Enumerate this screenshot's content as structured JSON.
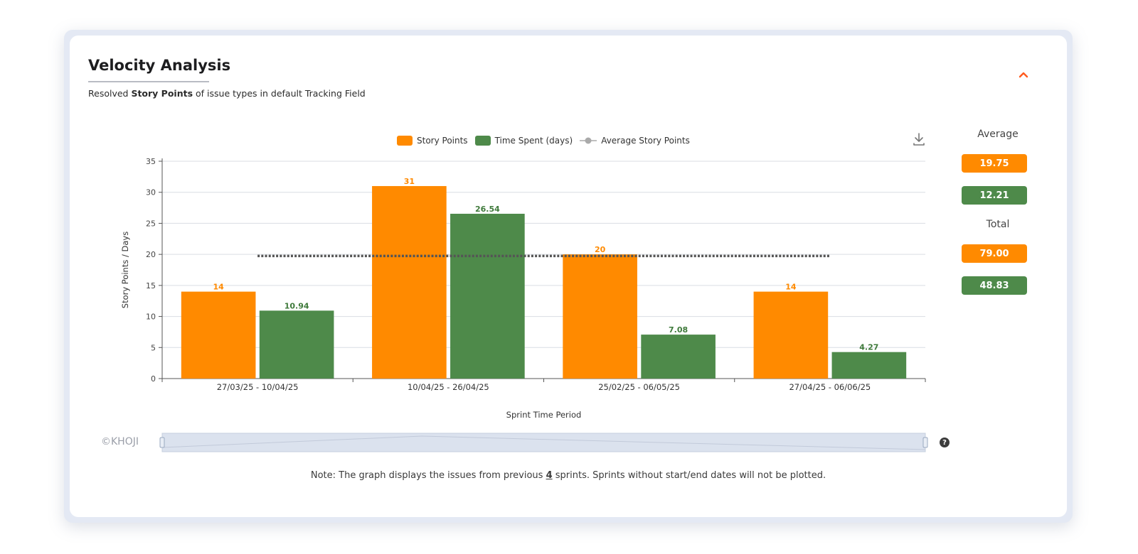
{
  "header": {
    "title": "Velocity Analysis",
    "subtitle_prefix": "Resolved ",
    "subtitle_bold": "Story Points",
    "subtitle_suffix": " of issue types in default Tracking Field",
    "collapse_icon": "chevron-up-icon"
  },
  "colors": {
    "story_points": "#ff8a00",
    "time_spent": "#4e8a4a",
    "average_line": "#555555",
    "accent": "#ff5a1f"
  },
  "toolbar": {
    "download_icon": "download-icon"
  },
  "summary": {
    "average_label": "Average",
    "average_story_points": "19.75",
    "average_time_spent": "12.21",
    "total_label": "Total",
    "total_story_points": "79.00",
    "total_time_spent": "48.83"
  },
  "watermark": "©KHOJI",
  "help_icon": "?",
  "note": {
    "prefix": "Note: The graph displays the issues from previous ",
    "count": "4",
    "suffix": " sprints. Sprints without start/end dates will not be plotted."
  },
  "chart_data": {
    "type": "bar",
    "categories": [
      "27/03/25 - 10/04/25",
      "10/04/25 - 26/04/25",
      "25/02/25 - 06/05/25",
      "27/04/25 - 06/06/25"
    ],
    "series": [
      {
        "name": "Story Points",
        "values": [
          14,
          31,
          20,
          14
        ],
        "labels": [
          "14",
          "31",
          "20",
          "14"
        ]
      },
      {
        "name": "Time Spent (days)",
        "values": [
          10.94,
          26.54,
          7.08,
          4.27
        ],
        "labels": [
          "10.94",
          "26.54",
          "7.08",
          "4.27"
        ]
      }
    ],
    "average_line": {
      "name": "Average Story Points",
      "value": 19.75,
      "type": "line",
      "style": "dotted"
    },
    "xlabel": "Sprint Time Period",
    "ylabel": "Story Points / Days",
    "ylim": [
      0,
      35
    ],
    "yticks": [
      0,
      5,
      10,
      15,
      20,
      25,
      30,
      35
    ],
    "grid": true,
    "legend_position": "top-center",
    "has_zoom_slider": true
  }
}
